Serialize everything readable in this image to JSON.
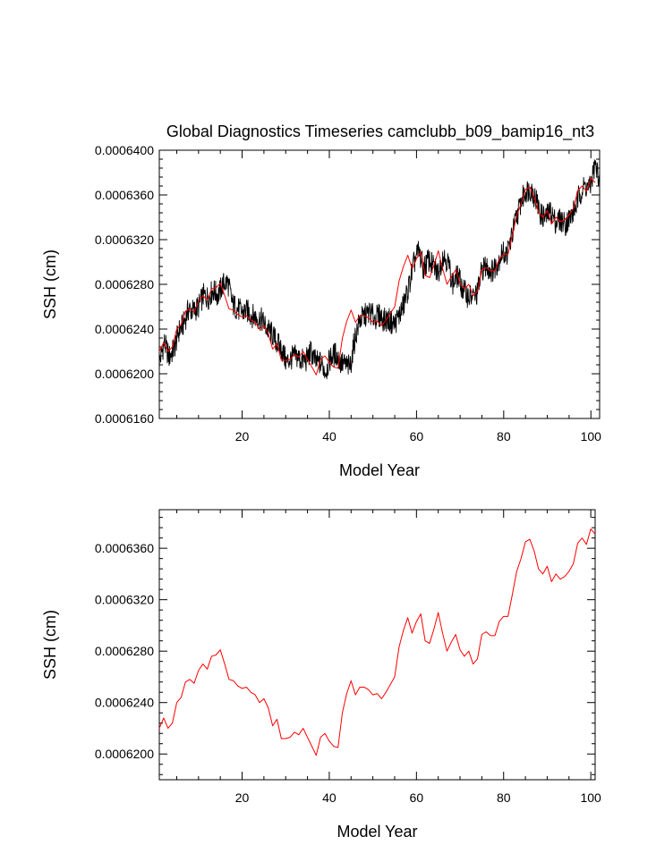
{
  "chart_data": [
    {
      "type": "line",
      "title": "Global Diagnostics Timeseries camclubb_b09_bamip16_nt3",
      "xlabel": "Model Year",
      "ylabel": "SSH (cm)",
      "xlim": [
        1,
        102
      ],
      "ylim": [
        0.000616,
        0.00064
      ],
      "x_ticks": [
        20,
        40,
        60,
        80,
        100
      ],
      "x_tick_labels": [
        "20",
        "40",
        "60",
        "80",
        "100"
      ],
      "y_ticks": [
        0.000616,
        0.00062,
        0.000624,
        0.000628,
        0.000632,
        0.000636,
        0.00064
      ],
      "y_tick_labels": [
        "0.0006160",
        "0.0006200",
        "0.0006240",
        "0.0006280",
        "0.0006320",
        "0.0006360",
        "0.0006400"
      ],
      "series": [
        {
          "color": "#000000",
          "monthly": true,
          "values": [
            0.000621,
            0.0006228,
            0.0006215,
            0.0006222,
            0.0006238,
            0.0006245,
            0.0006258,
            0.0006256,
            0.000626,
            0.000627,
            0.0006268,
            0.0006275,
            0.000627,
            0.000628,
            0.0006282,
            0.0006262,
            0.0006258,
            0.0006255,
            0.0006256,
            0.0006252,
            0.000625,
            0.0006248,
            0.000624,
            0.0006236,
            0.0006228,
            0.0006222,
            0.000621,
            0.0006214,
            0.0006216,
            0.0006212,
            0.0006212,
            0.000622,
            0.000621,
            0.000621,
            0.0006202,
            0.0006214,
            0.0006218,
            0.000621,
            0.0006208,
            0.0006206,
            0.0006232,
            0.0006248,
            0.0006252,
            0.0006255,
            0.000625,
            0.0006252,
            0.0006248,
            0.0006248,
            0.0006244,
            0.0006252,
            0.0006262,
            0.0006278,
            0.0006298,
            0.000631,
            0.0006294,
            0.0006302,
            0.0006296,
            0.000629,
            0.0006306,
            0.00063,
            0.000628,
            0.0006288,
            0.0006276,
            0.000627,
            0.0006268,
            0.0006272,
            0.0006294,
            0.0006296,
            0.0006292,
            0.0006298,
            0.0006308,
            0.0006307,
            0.0006322,
            0.000634,
            0.0006355,
            0.0006364,
            0.0006365,
            0.0006356,
            0.0006342,
            0.000634,
            0.0006345,
            0.0006336,
            0.0006338,
            0.0006334,
            0.000634,
            0.0006348,
            0.0006362,
            0.0006368,
            0.0006366,
            0.0006386,
            0.0006376
          ]
        },
        {
          "color": "#ff0000",
          "monthly": false,
          "values": [
            0.000622,
            0.0006228,
            0.000622,
            0.0006224,
            0.000624,
            0.0006244,
            0.0006256,
            0.0006258,
            0.0006255,
            0.0006265,
            0.000627,
            0.0006266,
            0.0006276,
            0.0006277,
            0.0006281,
            0.000627,
            0.0006258,
            0.0006257,
            0.0006253,
            0.0006251,
            0.0006252,
            0.0006248,
            0.0006246,
            0.000624,
            0.0006243,
            0.0006236,
            0.0006222,
            0.0006227,
            0.0006212,
            0.0006212,
            0.0006213,
            0.0006217,
            0.0006215,
            0.000622,
            0.0006213,
            0.0006206,
            0.0006199,
            0.0006213,
            0.0006216,
            0.000621,
            0.0006206,
            0.0006205,
            0.0006232,
            0.0006247,
            0.0006257,
            0.0006246,
            0.0006252,
            0.0006252,
            0.000625,
            0.0006246,
            0.0006247,
            0.0006243,
            0.0006248,
            0.0006254,
            0.000626,
            0.0006283,
            0.0006296,
            0.0006306,
            0.0006294,
            0.0006303,
            0.0006309,
            0.0006288,
            0.0006286,
            0.0006297,
            0.000631,
            0.0006294,
            0.000628,
            0.0006287,
            0.0006293,
            0.0006281,
            0.0006276,
            0.000628,
            0.000627,
            0.0006274,
            0.0006293,
            0.0006295,
            0.0006292,
            0.0006292,
            0.0006303,
            0.0006307,
            0.0006307,
            0.0006324,
            0.0006342,
            0.0006352,
            0.0006365,
            0.0006367,
            0.0006358,
            0.0006344,
            0.000634,
            0.0006346,
            0.0006334,
            0.000634,
            0.0006336,
            0.0006338,
            0.0006342,
            0.0006348,
            0.0006364,
            0.0006368,
            0.0006363,
            0.0006375,
            0.0006371
          ]
        }
      ]
    },
    {
      "type": "line",
      "title": "",
      "xlabel": "Model Year",
      "ylabel": "SSH (cm)",
      "xlim": [
        1,
        101
      ],
      "ylim": [
        0.000618,
        0.000639
      ],
      "x_ticks": [
        20,
        40,
        60,
        80,
        100
      ],
      "x_tick_labels": [
        "20",
        "40",
        "60",
        "80",
        "100"
      ],
      "y_ticks": [
        0.00062,
        0.000624,
        0.000628,
        0.000632,
        0.000636
      ],
      "y_tick_labels": [
        "0.0006200",
        "0.0006240",
        "0.0006280",
        "0.0006320",
        "0.0006360"
      ],
      "series": [
        {
          "color": "#ff0000",
          "values": [
            0.000622,
            0.0006228,
            0.000622,
            0.0006224,
            0.000624,
            0.0006244,
            0.0006256,
            0.0006258,
            0.0006255,
            0.0006265,
            0.000627,
            0.0006266,
            0.0006276,
            0.0006277,
            0.0006281,
            0.000627,
            0.0006258,
            0.0006257,
            0.0006253,
            0.0006251,
            0.0006252,
            0.0006248,
            0.0006246,
            0.000624,
            0.0006243,
            0.0006236,
            0.0006222,
            0.0006227,
            0.0006212,
            0.0006212,
            0.0006213,
            0.0006217,
            0.0006215,
            0.000622,
            0.0006213,
            0.0006206,
            0.0006199,
            0.0006213,
            0.0006216,
            0.000621,
            0.0006206,
            0.0006205,
            0.0006232,
            0.0006247,
            0.0006257,
            0.0006246,
            0.0006252,
            0.0006252,
            0.000625,
            0.0006246,
            0.0006247,
            0.0006243,
            0.0006248,
            0.0006254,
            0.000626,
            0.0006283,
            0.0006296,
            0.0006306,
            0.0006294,
            0.0006303,
            0.0006309,
            0.0006288,
            0.0006286,
            0.0006297,
            0.000631,
            0.0006294,
            0.000628,
            0.0006287,
            0.0006293,
            0.0006281,
            0.0006276,
            0.000628,
            0.000627,
            0.0006274,
            0.0006293,
            0.0006295,
            0.0006292,
            0.0006292,
            0.0006303,
            0.0006307,
            0.0006307,
            0.0006324,
            0.0006342,
            0.0006352,
            0.0006365,
            0.0006367,
            0.0006358,
            0.0006344,
            0.000634,
            0.0006346,
            0.0006334,
            0.000634,
            0.0006336,
            0.0006338,
            0.0006342,
            0.0006348,
            0.0006364,
            0.0006368,
            0.0006363,
            0.0006375,
            0.0006371
          ]
        }
      ]
    }
  ]
}
